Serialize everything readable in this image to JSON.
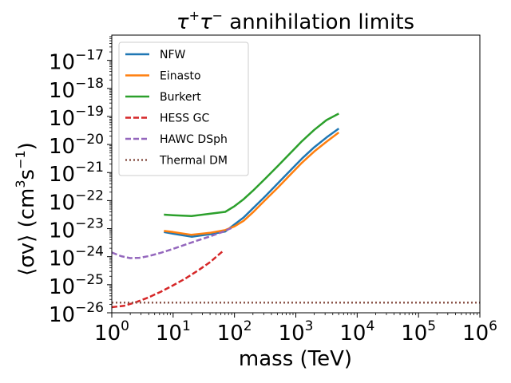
{
  "chart_data": {
    "type": "line",
    "title": "τ⁺τ⁻ annihilation limits",
    "title_parts": {
      "main": "τ",
      "sup1": "+",
      "mid": "τ",
      "sup2": "−",
      "tail": " annihilation limits"
    },
    "xlabel": "mass (TeV)",
    "ylabel": "⟨σv⟩ (cm³s⁻¹)",
    "ylabel_parts": {
      "a": "⟨σv⟩ (cm",
      "sup1": "3",
      "b": "s",
      "sup2": "−1",
      "c": ")"
    },
    "xscale": "log",
    "yscale": "log",
    "xlim_log10": [
      0,
      6
    ],
    "ylim_log10": [
      -26,
      -16.1
    ],
    "x_ticks_log10": [
      0,
      1,
      2,
      3,
      4,
      5,
      6
    ],
    "y_ticks_log10": [
      -26,
      -25,
      -24,
      -23,
      -22,
      -21,
      -20,
      -19,
      -18,
      -17
    ],
    "tick_base": "10",
    "legend_position": "upper-left",
    "series": [
      {
        "name": "NFW",
        "color": "#1f77b4",
        "style": "solid",
        "x_log10": [
          0.85,
          1.0,
          1.3,
          1.6,
          1.85,
          2.0,
          2.15,
          2.3,
          2.5,
          2.7,
          2.9,
          3.1,
          3.3,
          3.5,
          3.7
        ],
        "y_log10": [
          -23.12,
          -23.18,
          -23.29,
          -23.2,
          -23.1,
          -22.85,
          -22.6,
          -22.28,
          -21.85,
          -21.4,
          -20.95,
          -20.5,
          -20.1,
          -19.75,
          -19.43
        ]
      },
      {
        "name": "Einasto",
        "color": "#ff7f0e",
        "style": "solid",
        "x_log10": [
          0.85,
          1.0,
          1.3,
          1.6,
          1.85,
          2.0,
          2.15,
          2.3,
          2.5,
          2.7,
          2.9,
          3.1,
          3.3,
          3.5,
          3.7
        ],
        "y_log10": [
          -23.08,
          -23.12,
          -23.22,
          -23.15,
          -23.05,
          -22.92,
          -22.72,
          -22.42,
          -21.98,
          -21.55,
          -21.1,
          -20.65,
          -20.25,
          -19.9,
          -19.57
        ]
      },
      {
        "name": "Burkert",
        "color": "#2ca02c",
        "style": "solid",
        "x_log10": [
          0.85,
          1.0,
          1.3,
          1.6,
          1.85,
          2.0,
          2.15,
          2.3,
          2.5,
          2.7,
          2.9,
          3.1,
          3.3,
          3.5,
          3.7
        ],
        "y_log10": [
          -22.5,
          -22.52,
          -22.55,
          -22.47,
          -22.4,
          -22.2,
          -21.95,
          -21.65,
          -21.22,
          -20.78,
          -20.33,
          -19.88,
          -19.48,
          -19.13,
          -18.9
        ]
      },
      {
        "name": "HESS GC",
        "color": "#d62728",
        "style": "dashed",
        "x_log10": [
          0.0,
          0.2,
          0.4,
          0.6,
          0.8,
          1.0,
          1.2,
          1.4,
          1.6,
          1.8
        ],
        "y_log10": [
          -25.8,
          -25.75,
          -25.62,
          -25.45,
          -25.25,
          -25.02,
          -24.78,
          -24.5,
          -24.2,
          -23.82
        ]
      },
      {
        "name": "HAWC DSph",
        "color": "#9467bd",
        "style": "dashed",
        "x_log10": [
          0.0,
          0.15,
          0.3,
          0.45,
          0.6,
          0.8,
          1.0,
          1.2,
          1.4,
          1.6,
          1.8,
          1.95
        ],
        "y_log10": [
          -23.85,
          -23.98,
          -24.05,
          -24.04,
          -23.98,
          -23.86,
          -23.72,
          -23.57,
          -23.42,
          -23.28,
          -23.12,
          -22.98
        ]
      },
      {
        "name": "Thermal DM",
        "color": "#8c564b",
        "style": "dotted",
        "x_log10": [
          0.0,
          6.0
        ],
        "y_log10": [
          -25.64,
          -25.64
        ]
      }
    ]
  }
}
